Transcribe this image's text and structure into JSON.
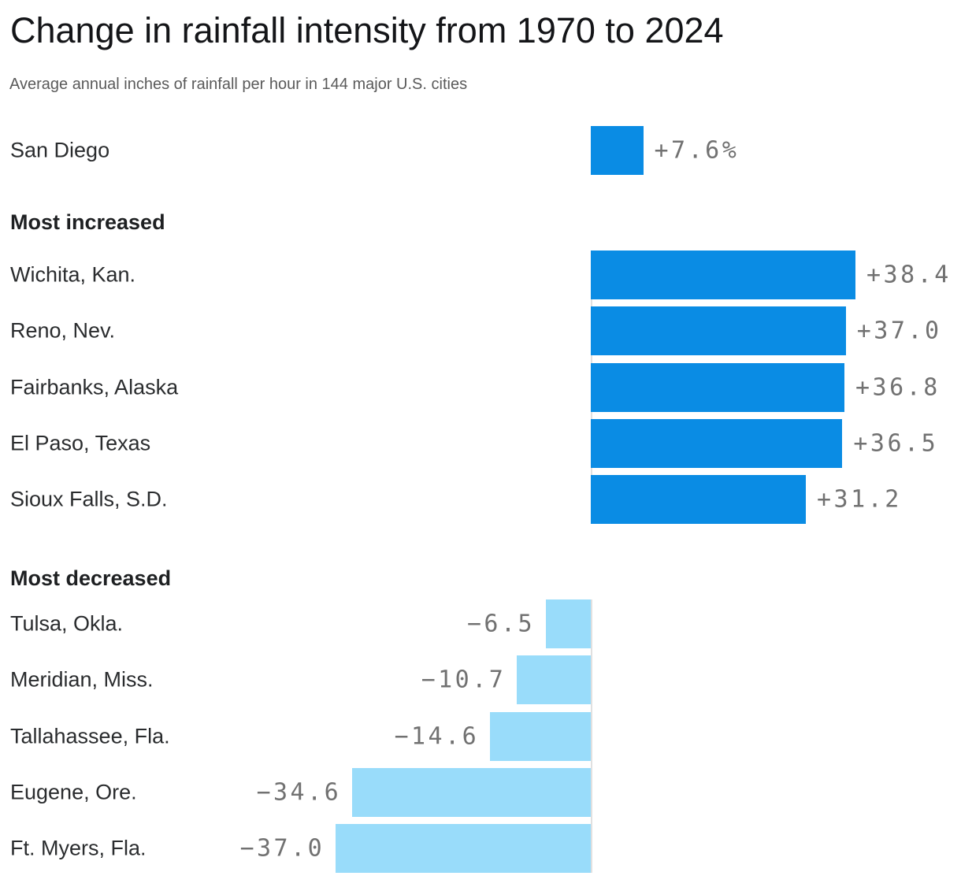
{
  "header": {
    "title": "Change in rainfall intensity from 1970 to 2024",
    "subtitle": "Average annual inches of rainfall per hour in 144 major U.S. cities"
  },
  "chart_data": {
    "type": "bar",
    "orientation": "horizontal",
    "title": "Change in rainfall intensity from 1970 to 2024",
    "subtitle": "Average annual inches of rainfall per hour in 144 major U.S. cities",
    "value_unit": "percent",
    "legend": "none",
    "grid": "off",
    "xlim": [
      -40,
      40
    ],
    "groups": [
      {
        "name": "",
        "items": [
          {
            "label": "San Diego",
            "value": 7.6,
            "display": "+7.6%"
          }
        ]
      },
      {
        "name": "Most increased",
        "items": [
          {
            "label": "Wichita, Kan.",
            "value": 38.4,
            "display": "+38.4"
          },
          {
            "label": "Reno, Nev.",
            "value": 37.0,
            "display": "+37.0"
          },
          {
            "label": "Fairbanks, Alaska",
            "value": 36.8,
            "display": "+36.8"
          },
          {
            "label": "El Paso, Texas",
            "value": 36.5,
            "display": "+36.5"
          },
          {
            "label": "Sioux Falls, S.D.",
            "value": 31.2,
            "display": "+31.2"
          }
        ]
      },
      {
        "name": "Most decreased",
        "items": [
          {
            "label": "Tulsa, Okla.",
            "value": -6.5,
            "display": "−6.5"
          },
          {
            "label": "Meridian, Miss.",
            "value": -10.7,
            "display": "−10.7"
          },
          {
            "label": "Tallahassee, Fla.",
            "value": -14.6,
            "display": "−14.6"
          },
          {
            "label": "Eugene, Ore.",
            "value": -34.6,
            "display": "−34.6"
          },
          {
            "label": "Ft. Myers, Fla.",
            "value": -37.0,
            "display": "−37.0"
          }
        ]
      }
    ],
    "colors": {
      "positive_bar": "#0a8ce4",
      "negative_bar": "#99dcfa",
      "title_text": "#141518",
      "subtitle_text": "#5a5a5a",
      "city_label_text": "#2a2c2e",
      "value_label_text": "#717171",
      "axis_line": "#e0e0e0"
    }
  }
}
